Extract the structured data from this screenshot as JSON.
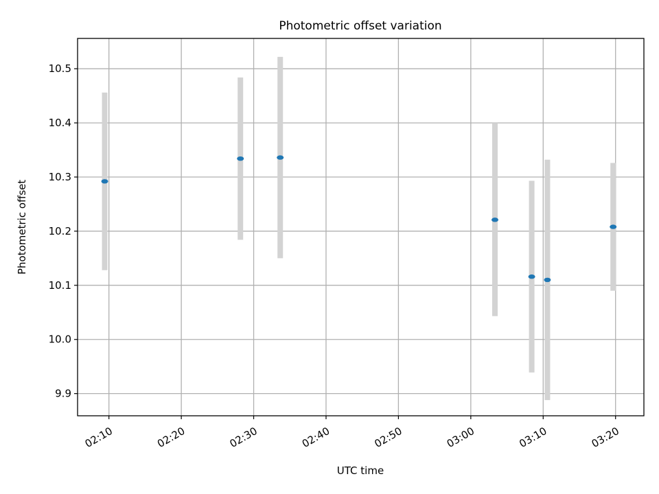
{
  "chart_data": {
    "type": "scatter",
    "title": "Photometric offset variation",
    "xlabel": "UTC time",
    "ylabel": "Photometric offset",
    "xlim": [
      "02:05:40",
      "03:23:55"
    ],
    "ylim": [
      9.859,
      10.556
    ],
    "grid": true,
    "x_ticks": [
      "02:10",
      "02:20",
      "02:30",
      "02:40",
      "02:50",
      "03:00",
      "03:10",
      "03:20"
    ],
    "y_ticks": [
      "9.9",
      "10.0",
      "10.1",
      "10.2",
      "10.3",
      "10.4",
      "10.5"
    ],
    "points": [
      {
        "x": "02:09:25",
        "y": 10.292,
        "ylow": 10.128,
        "yhigh": 10.456
      },
      {
        "x": "02:28:10",
        "y": 10.334,
        "ylow": 10.184,
        "yhigh": 10.484
      },
      {
        "x": "02:33:40",
        "y": 10.336,
        "ylow": 10.15,
        "yhigh": 10.522
      },
      {
        "x": "03:03:20",
        "y": 10.221,
        "ylow": 10.043,
        "yhigh": 10.4
      },
      {
        "x": "03:08:25",
        "y": 10.116,
        "ylow": 9.939,
        "yhigh": 10.293
      },
      {
        "x": "03:10:35",
        "y": 10.11,
        "ylow": 9.888,
        "yhigh": 10.332
      },
      {
        "x": "03:19:40",
        "y": 10.208,
        "ylow": 10.09,
        "yhigh": 10.326
      }
    ],
    "colors": {
      "marker": "#1f77b4",
      "errorbar": "#d3d3d3",
      "grid": "#b0b0b0",
      "axis": "#000000"
    }
  }
}
